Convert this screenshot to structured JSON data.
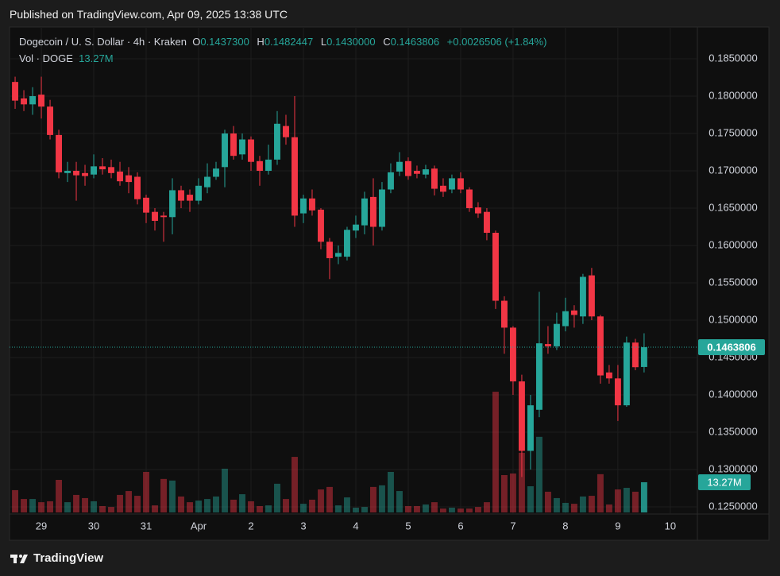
{
  "chart_data": {
    "type": "candlestick",
    "published": "Published on TradingView.com, Apr 09, 2025 13:38 UTC",
    "title": "Dogecoin / U. S. Dollar · 4h · Kraken",
    "legend": {
      "o": "O",
      "open": "0.1437300",
      "h": "H",
      "high": "0.1482447",
      "l": "L",
      "low": "0.1430000",
      "c": "C",
      "close": "0.1463806",
      "change": "+0.0026506 (+1.84%)",
      "volume_title": "Vol · DOGE",
      "volume": "13.27M"
    },
    "branding": "TradingView",
    "up_color": "#26a69a",
    "down_color": "#f23645",
    "grid": true,
    "x": [
      0,
      1,
      2,
      3,
      4,
      5,
      6,
      7,
      8,
      9,
      10,
      11,
      12,
      13,
      14,
      15,
      16,
      17,
      18,
      19,
      20,
      21,
      22,
      23,
      24,
      25,
      26,
      27,
      28,
      29,
      30,
      31,
      32,
      33,
      34,
      35,
      36,
      37,
      38,
      39,
      40,
      41,
      42,
      43,
      44,
      45,
      46,
      47,
      48,
      49,
      50,
      51,
      52,
      53,
      54,
      55,
      56,
      57,
      58,
      59,
      60,
      61,
      62,
      63,
      64,
      65,
      66,
      67,
      68,
      69,
      70,
      71,
      72
    ],
    "open": [
      0.1819,
      0.1797,
      0.1789,
      0.1802,
      0.1786,
      0.1748,
      0.1697,
      0.17,
      0.1697,
      0.1695,
      0.1706,
      0.1705,
      0.1699,
      0.1694,
      0.1692,
      0.1664,
      0.1645,
      0.164,
      0.1638,
      0.1674,
      0.1668,
      0.166,
      0.1678,
      0.1692,
      0.1705,
      0.175,
      0.1722,
      0.1742,
      0.1713,
      0.17,
      0.1715,
      0.176,
      0.1745,
      0.1643,
      0.1663,
      0.1648,
      0.1605,
      0.1585,
      0.1585,
      0.162,
      0.1627,
      0.1665,
      0.1625,
      0.1675,
      0.1699,
      0.1713,
      0.17,
      0.1695,
      0.1703,
      0.168,
      0.1675,
      0.169,
      0.1675,
      0.1651,
      0.1645,
      0.1617,
      0.1526,
      0.149,
      0.1418,
      0.1325,
      0.138,
      0.1468,
      0.1465,
      0.1492,
      0.1513,
      0.1505,
      0.156,
      0.1505,
      0.143,
      0.1422,
      0.1386,
      0.147,
      0.14373
    ],
    "high": [
      0.1826,
      0.1808,
      0.1812,
      0.1826,
      0.1795,
      0.1755,
      0.1712,
      0.1712,
      0.1708,
      0.1722,
      0.1717,
      0.1715,
      0.1712,
      0.1705,
      0.1698,
      0.1668,
      0.165,
      0.1645,
      0.169,
      0.168,
      0.1675,
      0.169,
      0.171,
      0.1712,
      0.1755,
      0.176,
      0.175,
      0.1746,
      0.172,
      0.1735,
      0.178,
      0.1775,
      0.18,
      0.1668,
      0.1675,
      0.165,
      0.161,
      0.16,
      0.1625,
      0.164,
      0.1672,
      0.169,
      0.1685,
      0.171,
      0.1725,
      0.1718,
      0.1707,
      0.1708,
      0.1707,
      0.169,
      0.1695,
      0.1698,
      0.1678,
      0.1658,
      0.165,
      0.162,
      0.1532,
      0.1492,
      0.1427,
      0.14,
      0.1538,
      0.1492,
      0.151,
      0.153,
      0.152,
      0.1562,
      0.157,
      0.1507,
      0.144,
      0.144,
      0.1478,
      0.1475,
      0.1482447
    ],
    "low": [
      0.1783,
      0.178,
      0.1775,
      0.177,
      0.1742,
      0.169,
      0.1685,
      0.166,
      0.168,
      0.169,
      0.1695,
      0.169,
      0.168,
      0.167,
      0.1655,
      0.163,
      0.162,
      0.1605,
      0.1615,
      0.165,
      0.1645,
      0.1655,
      0.167,
      0.1688,
      0.1678,
      0.1715,
      0.1715,
      0.17,
      0.168,
      0.1695,
      0.1708,
      0.1735,
      0.1625,
      0.163,
      0.164,
      0.1595,
      0.1555,
      0.1575,
      0.158,
      0.161,
      0.1615,
      0.16,
      0.162,
      0.167,
      0.1693,
      0.1688,
      0.169,
      0.169,
      0.1667,
      0.1665,
      0.167,
      0.167,
      0.1645,
      0.1637,
      0.1607,
      0.1515,
      0.1455,
      0.14,
      0.129,
      0.13,
      0.137,
      0.1455,
      0.146,
      0.1485,
      0.149,
      0.1495,
      0.15,
      0.1415,
      0.1415,
      0.1365,
      0.1384,
      0.1433,
      0.143
    ],
    "close": [
      0.1794,
      0.1789,
      0.18,
      0.1786,
      0.1748,
      0.1698,
      0.17,
      0.1694,
      0.1693,
      0.1706,
      0.1702,
      0.1697,
      0.1686,
      0.1685,
      0.1662,
      0.1644,
      0.1633,
      0.1638,
      0.1674,
      0.166,
      0.166,
      0.168,
      0.1692,
      0.1703,
      0.175,
      0.172,
      0.1742,
      0.1712,
      0.17,
      0.1715,
      0.1763,
      0.1745,
      0.164,
      0.1663,
      0.1647,
      0.1605,
      0.1583,
      0.159,
      0.1621,
      0.1628,
      0.1663,
      0.1625,
      0.1675,
      0.1698,
      0.1712,
      0.1693,
      0.1696,
      0.1702,
      0.1676,
      0.1672,
      0.169,
      0.1675,
      0.165,
      0.1643,
      0.1617,
      0.1526,
      0.149,
      0.1418,
      0.1325,
      0.1386,
      0.1469,
      0.1465,
      0.1495,
      0.1512,
      0.1507,
      0.1558,
      0.1505,
      0.1426,
      0.1422,
      0.1386,
      0.147,
      0.1437,
      0.1463806
    ],
    "volume": [
      9.8,
      5.9,
      5.9,
      4.5,
      4.9,
      14.3,
      4.5,
      7.7,
      6.3,
      4.9,
      2.8,
      2.4,
      7.7,
      9.4,
      7.3,
      17.8,
      3.1,
      14.7,
      14.0,
      7.0,
      4.5,
      5.2,
      5.9,
      7.0,
      19.2,
      5.6,
      8.0,
      4.9,
      2.8,
      3.1,
      12.6,
      5.9,
      24.4,
      3.8,
      5.6,
      10.1,
      11.2,
      3.1,
      6.6,
      2.1,
      2.4,
      11.2,
      11.9,
      17.8,
      9.4,
      2.8,
      2.8,
      3.5,
      4.5,
      1.7,
      2.1,
      1.7,
      1.7,
      2.4,
      4.5,
      53.0,
      16.4,
      17.1,
      26.2,
      11.5,
      33.2,
      9.1,
      6.3,
      4.2,
      3.8,
      7.0,
      7.3,
      16.8,
      3.5,
      10.1,
      10.8,
      9.1,
      13.27
    ],
    "xlim": [
      -0.64,
      78.1
    ],
    "xticks": [
      {
        "value": 3,
        "label": "29"
      },
      {
        "value": 9,
        "label": "30"
      },
      {
        "value": 15,
        "label": "31"
      },
      {
        "value": 21,
        "label": "Apr"
      },
      {
        "value": 27,
        "label": "2"
      },
      {
        "value": 33,
        "label": "3"
      },
      {
        "value": 39,
        "label": "4"
      },
      {
        "value": 45,
        "label": "5"
      },
      {
        "value": 51,
        "label": "6"
      },
      {
        "value": 57,
        "label": "7"
      },
      {
        "value": 63,
        "label": "8"
      },
      {
        "value": 69,
        "label": "9"
      },
      {
        "value": 75,
        "label": "10"
      }
    ],
    "ylim": [
      0.12404,
      0.18915
    ],
    "yticks": [
      {
        "value": 0.125,
        "label": "0.1250000"
      },
      {
        "value": 0.13,
        "label": "0.1300000"
      },
      {
        "value": 0.135,
        "label": "0.1350000"
      },
      {
        "value": 0.14,
        "label": "0.1400000"
      },
      {
        "value": 0.145,
        "label": "0.1450000"
      },
      {
        "value": 0.15,
        "label": "0.1500000"
      },
      {
        "value": 0.155,
        "label": "0.1550000"
      },
      {
        "value": 0.16,
        "label": "0.1600000"
      },
      {
        "value": 0.165,
        "label": "0.1650000"
      },
      {
        "value": 0.17,
        "label": "0.1700000"
      },
      {
        "value": 0.175,
        "label": "0.1750000"
      },
      {
        "value": 0.18,
        "label": "0.1800000"
      },
      {
        "value": 0.185,
        "label": "0.1850000"
      }
    ],
    "y2lim": [
      0,
      60
    ]
  }
}
